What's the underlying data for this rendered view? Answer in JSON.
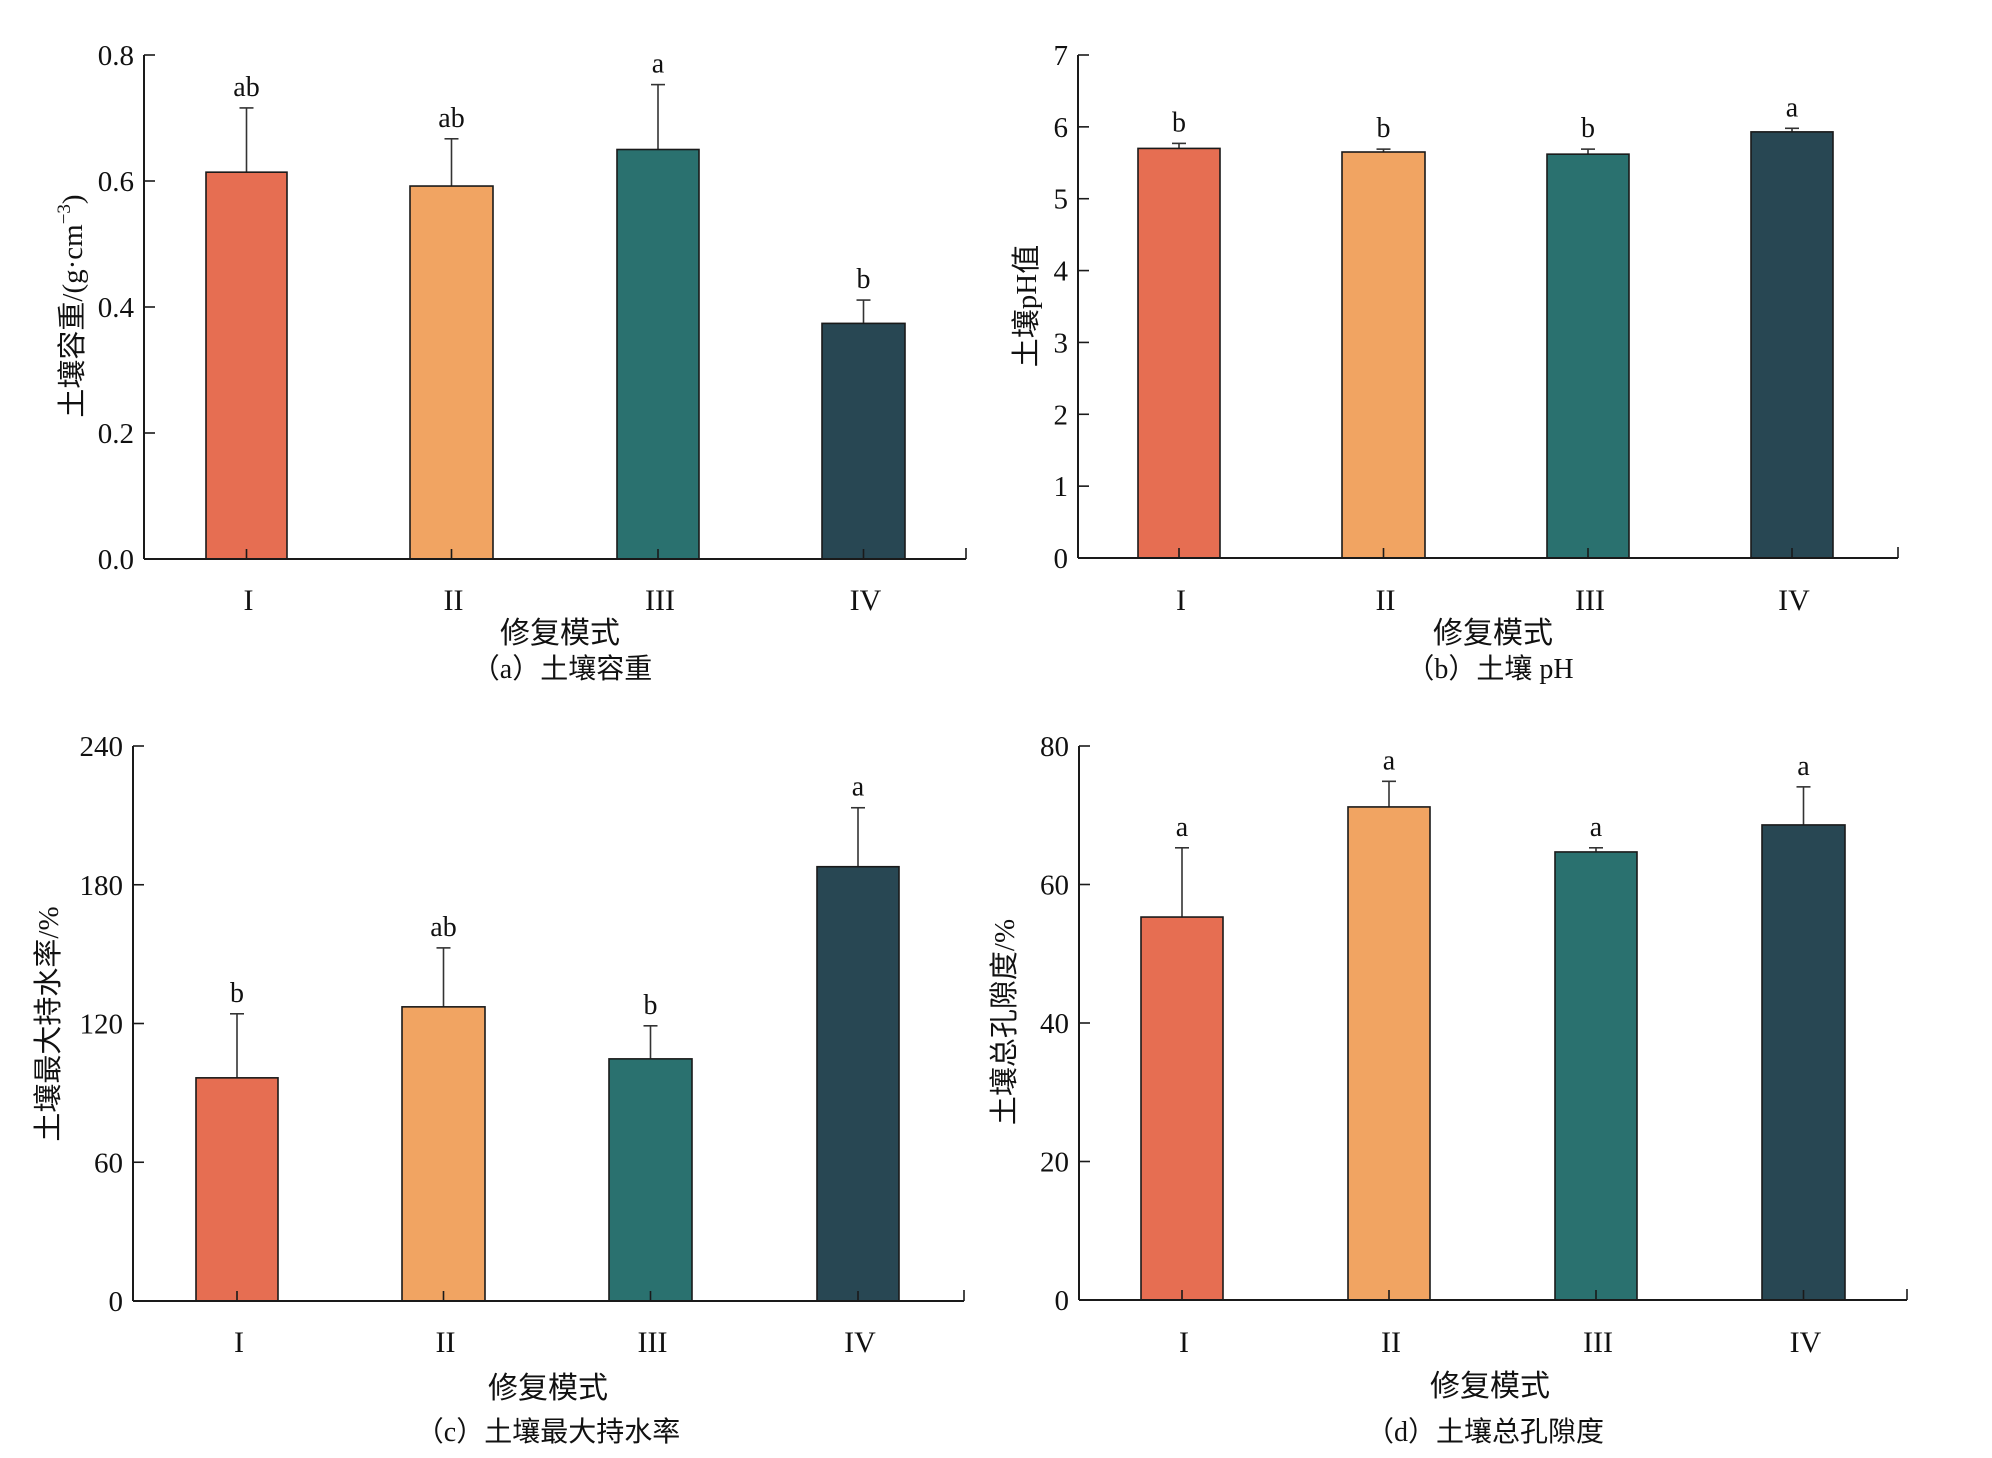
{
  "colors": {
    "I": "#E66E52",
    "II": "#F1A462",
    "III": "#2A716F",
    "IV": "#284753",
    "axis": "#1a1a1a",
    "bar_edge": "#1a1a1a",
    "error_bar": "#333333"
  },
  "chart_data": [
    {
      "id": "a",
      "type": "bar",
      "caption": "（a）土壤容重",
      "xlabel": "修复模式",
      "ylabel": "土壤容重/(g·cm",
      "ylabel_sup": "−3",
      "ylabel_close": ")",
      "categories": [
        "I",
        "II",
        "III",
        "IV"
      ],
      "values": [
        0.614,
        0.592,
        0.65,
        0.374
      ],
      "error_upper": [
        0.716,
        0.667,
        0.753,
        0.411
      ],
      "significance": [
        "ab",
        "ab",
        "a",
        "b"
      ],
      "ylim": [
        0,
        0.8
      ],
      "yticks": [
        0.0,
        0.2,
        0.4,
        0.6,
        0.8
      ],
      "ytick_labels": [
        "0.0",
        "0.2",
        "0.4",
        "0.6",
        "0.8"
      ],
      "grid": false
    },
    {
      "id": "b",
      "type": "bar",
      "caption": "（b）土壤 pH",
      "xlabel": "修复模式",
      "ylabel": "土壤pH值",
      "categories": [
        "I",
        "II",
        "III",
        "IV"
      ],
      "values": [
        5.7,
        5.65,
        5.62,
        5.93
      ],
      "error_upper": [
        5.77,
        5.69,
        5.69,
        5.98
      ],
      "significance": [
        "b",
        "b",
        "b",
        "a"
      ],
      "ylim": [
        0,
        7
      ],
      "yticks": [
        0,
        1,
        2,
        3,
        4,
        5,
        6,
        7
      ],
      "ytick_labels": [
        "0",
        "1",
        "2",
        "3",
        "4",
        "5",
        "6",
        "7"
      ],
      "grid": false
    },
    {
      "id": "c",
      "type": "bar",
      "caption": "（c）土壤最大持水率",
      "xlabel": "修复模式",
      "ylabel": "土壤最大持水率/%",
      "categories": [
        "I",
        "II",
        "III",
        "IV"
      ],
      "values": [
        96.5,
        127.2,
        104.7,
        187.8
      ],
      "error_upper": [
        124.2,
        152.7,
        119.0,
        213.3
      ],
      "significance": [
        "b",
        "ab",
        "b",
        "a"
      ],
      "ylim": [
        0,
        240
      ],
      "yticks": [
        0,
        60,
        120,
        180,
        240
      ],
      "ytick_labels": [
        "0",
        "60",
        "120",
        "180",
        "240"
      ],
      "grid": false
    },
    {
      "id": "d",
      "type": "bar",
      "caption": "（d）土壤总孔隙度",
      "xlabel": "修复模式",
      "ylabel": "土壤总孔隙度/%",
      "categories": [
        "I",
        "II",
        "III",
        "IV"
      ],
      "values": [
        55.3,
        71.2,
        64.7,
        68.6
      ],
      "error_upper": [
        65.3,
        74.9,
        65.3,
        74.1
      ],
      "significance": [
        "a",
        "a",
        "a",
        "a"
      ],
      "ylim": [
        0,
        80
      ],
      "yticks": [
        0,
        20,
        40,
        60,
        80
      ],
      "ytick_labels": [
        "0",
        "20",
        "40",
        "60",
        "80"
      ],
      "grid": false
    }
  ]
}
